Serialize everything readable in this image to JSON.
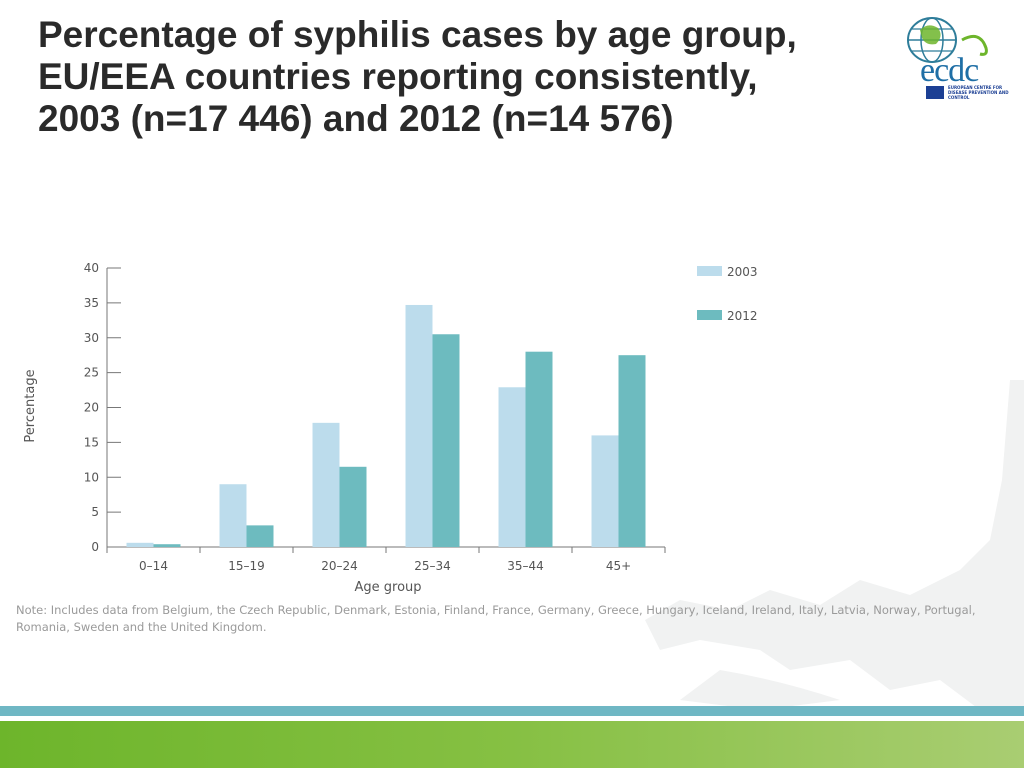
{
  "title_lines": [
    "Percentage of syphilis cases by age group,",
    "EU/EEA countries reporting consistently,",
    "2003 (n=17 446) and 2012 (n=14 576)"
  ],
  "logo": {
    "text": "ecdc",
    "subtext": "EUROPEAN CENTRE FOR DISEASE PREVENTION AND CONTROL"
  },
  "note": "Note: Includes data from Belgium, the Czech Republic, Denmark, Estonia, Finland, France, Germany, Greece, Hungary, Iceland, Ireland, Italy, Latvia, Norway, Portugal, Romania, Sweden and the United Kingdom.",
  "colors": {
    "series_2003": "#bcdcec",
    "series_2012": "#6dbbbf",
    "title": "#2a2a2a",
    "stripe_blue": "#6fb7c4",
    "stripe_green": "#86c043"
  },
  "chart_data": {
    "type": "bar",
    "categories": [
      "0–14",
      "15–19",
      "20–24",
      "25–34",
      "35–44",
      "45+"
    ],
    "series": [
      {
        "name": "2003",
        "values": [
          0.6,
          9.0,
          17.8,
          34.7,
          22.9,
          16.0
        ]
      },
      {
        "name": "2012",
        "values": [
          0.4,
          3.1,
          11.5,
          30.5,
          28.0,
          27.5
        ]
      }
    ],
    "xlabel": "Age group",
    "ylabel": "Percentage",
    "ylim": [
      0,
      40
    ],
    "yticks": [
      0,
      5,
      10,
      15,
      20,
      25,
      30,
      35,
      40
    ],
    "grid": false,
    "legend": "right"
  }
}
